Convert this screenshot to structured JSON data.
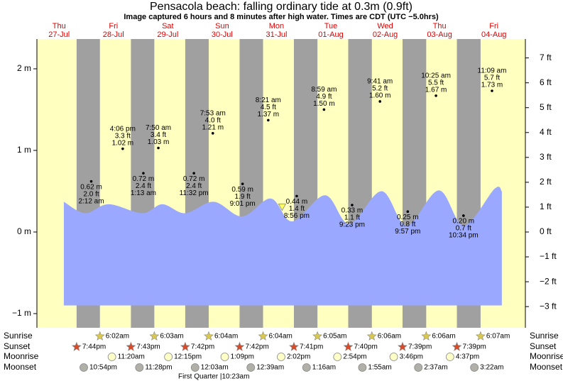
{
  "title": "Pensacola beach: falling  ordinary tide at 0.3m (0.9ft)",
  "subtitle": "Image captured 6 hours and 8 minutes after high water. Times are CDT (UTC −5.0hrs)",
  "days": [
    {
      "weekday": "Thu",
      "date": "27-Jul"
    },
    {
      "weekday": "Fri",
      "date": "28-Jul"
    },
    {
      "weekday": "Sat",
      "date": "29-Jul"
    },
    {
      "weekday": "Sun",
      "date": "30-Jul"
    },
    {
      "weekday": "Mon",
      "date": "31-Jul"
    },
    {
      "weekday": "Tue",
      "date": "01-Aug"
    },
    {
      "weekday": "Wed",
      "date": "02-Aug"
    },
    {
      "weekday": "Thu",
      "date": "03-Aug"
    },
    {
      "weekday": "Fri",
      "date": "04-Aug"
    }
  ],
  "ylim": [
    -1.174,
    2.365
  ],
  "yticks": [
    {
      "value": 2,
      "label": "2 m"
    },
    {
      "value": 1,
      "label": "1 m"
    },
    {
      "value": 0,
      "label": "0 m"
    },
    {
      "value": -1,
      "label": "−1 m"
    }
  ],
  "y2lim": [
    -3.852,
    7.76
  ],
  "y2ticks": [
    {
      "value": 7,
      "label": "7 ft"
    },
    {
      "value": 6,
      "label": "6 ft"
    },
    {
      "value": 5,
      "label": "5 ft"
    },
    {
      "value": 4,
      "label": "4 ft"
    },
    {
      "value": 3,
      "label": "3 ft"
    },
    {
      "value": 2,
      "label": "2 ft"
    },
    {
      "value": 1,
      "label": "1 ft"
    },
    {
      "value": 0,
      "label": "0 ft"
    },
    {
      "value": -1,
      "label": "−1 ft"
    },
    {
      "value": -2,
      "label": "−2 ft"
    },
    {
      "value": -3,
      "label": "−3 ft"
    }
  ],
  "curve": {
    "color": "#9aa8ff",
    "base": -0.9,
    "x_hours": [
      -9.9,
      -0.5,
      9.9,
      24.8,
      33.6,
      43.7,
      56.3,
      68.9,
      81.5,
      91,
      105.5,
      116.2,
      130.4,
      141.5,
      155.7,
      166.7,
      180.3,
      183.5
    ],
    "values": [
      0.37,
      0.23,
      0.34,
      0.23,
      0.34,
      0.23,
      0.37,
      0.19,
      0.41,
      0.13,
      0.45,
      0.1,
      0.5,
      0.08,
      0.51,
      0.08,
      0.53,
      0.5
    ]
  },
  "now_marker": {
    "x_hours": 86.5,
    "value": 0.3
  },
  "tides": [
    [],
    [
      {
        "time": "2:12 am",
        "height_m": 0.62,
        "label_m": "0.62 m",
        "label_ft": "2.0 ft"
      },
      {
        "time": "4:06 pm",
        "height_m": 1.02,
        "label_m": "1.02 m",
        "label_ft": "3.3 ft"
      }
    ],
    [
      {
        "time": "1:13 am",
        "height_m": 0.72,
        "label_m": "0.72 m",
        "label_ft": "2.4 ft"
      },
      {
        "time": "7:50 am",
        "height_m": 1.03,
        "label_m": "1.03 m",
        "label_ft": "3.4 ft"
      },
      {
        "time": "11:32 pm",
        "height_m": 0.72,
        "label_m": "0.72 m",
        "label_ft": "2.4 ft"
      }
    ],
    [
      {
        "time": "7:53 am",
        "height_m": 1.21,
        "label_m": "1.21 m",
        "label_ft": "4.0 ft"
      },
      {
        "time": "9:01 pm",
        "height_m": 0.59,
        "label_m": "0.59 m",
        "label_ft": "1.9 ft"
      }
    ],
    [
      {
        "time": "8:21 am",
        "height_m": 1.37,
        "label_m": "1.37 m",
        "label_ft": "4.5 ft"
      },
      {
        "time": "8:56 pm",
        "height_m": 0.44,
        "label_m": "0.44 m",
        "label_ft": "1.4 ft"
      }
    ],
    [
      {
        "time": "8:59 am",
        "height_m": 1.5,
        "label_m": "1.50 m",
        "label_ft": "4.9 ft"
      },
      {
        "time": "9:23 pm",
        "height_m": 0.33,
        "label_m": "0.33 m",
        "label_ft": "1.1 ft"
      }
    ],
    [
      {
        "time": "9:41 am",
        "height_m": 1.6,
        "label_m": "1.60 m",
        "label_ft": "5.2 ft"
      },
      {
        "time": "9:57 pm",
        "height_m": 0.25,
        "label_m": "0.25 m",
        "label_ft": "0.8 ft"
      }
    ],
    [
      {
        "time": "10:25 am",
        "height_m": 1.67,
        "label_m": "1.67 m",
        "label_ft": "5.5 ft"
      },
      {
        "time": "10:34 pm",
        "height_m": 0.2,
        "label_m": "0.20 m",
        "label_ft": "0.7 ft"
      }
    ],
    [
      {
        "time": "11:09 am",
        "height_m": 1.73,
        "label_m": "1.73 m",
        "label_ft": "5.7 ft"
      }
    ]
  ],
  "almanac": [
    {
      "label": "Sunrise",
      "times": [
        null,
        "6:02am",
        "6:03am",
        "6:04am",
        "6:04am",
        "6:05am",
        "6:06am",
        "6:06am",
        "6:07am"
      ]
    },
    {
      "label": "Sunset",
      "times": [
        "7:44pm",
        "7:43pm",
        "7:42pm",
        "7:42pm",
        "7:41pm",
        "7:40pm",
        "7:39pm",
        "7:39pm",
        null
      ]
    },
    {
      "label": "Moonrise",
      "times": [
        null,
        "11:20am",
        "12:15pm",
        "1:09pm",
        "2:02pm",
        "2:54pm",
        "3:46pm",
        "4:37pm",
        null
      ]
    },
    {
      "label": "Moonset",
      "times": [
        "10:54pm",
        "11:28pm",
        null,
        "12:03am",
        "12:39am",
        "1:16am",
        "1:55am",
        "2:37am",
        "3:22am"
      ]
    }
  ],
  "moon_phase": "First Quarter |10:23am"
}
